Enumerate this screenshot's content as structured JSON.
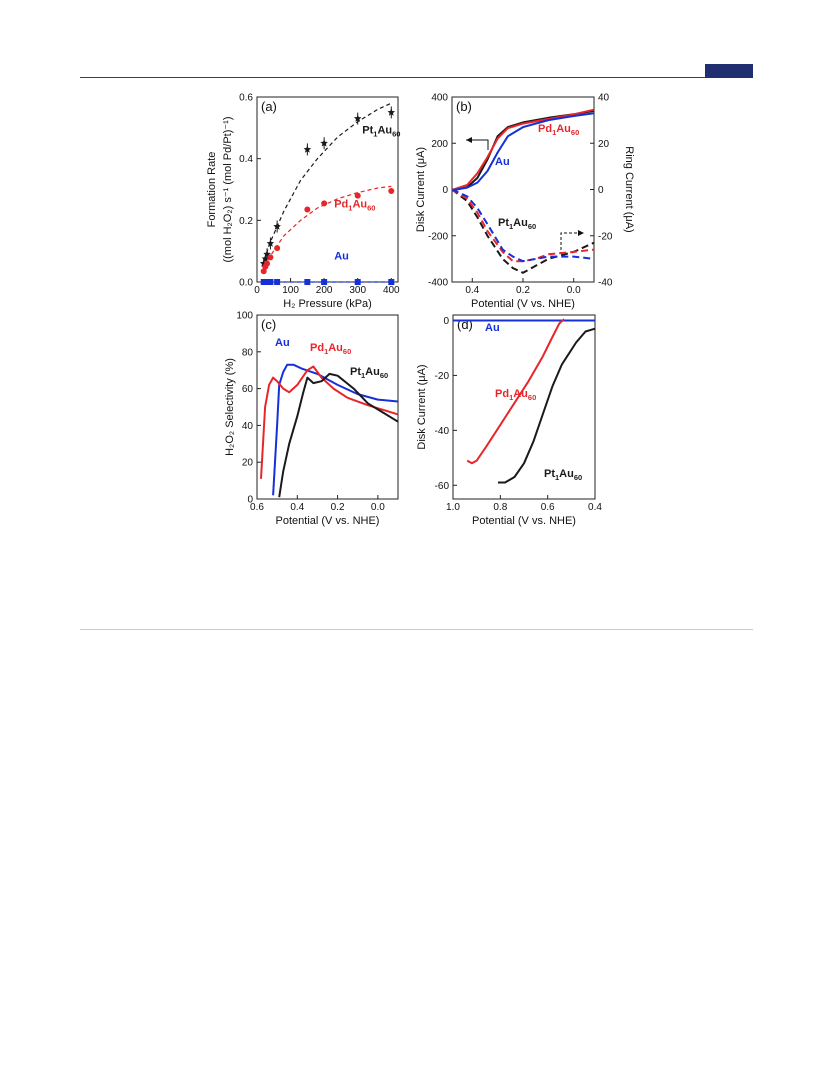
{
  "chart_data": [
    {
      "panel": "(a)",
      "type": "scatter",
      "xlabel": "H2 Pressure (kPa)",
      "ylabel_line1": "Formation Rate",
      "ylabel_line2": "((mol H2O2) s-1 (mol Pd/Pt)-1)",
      "xlim": [
        0,
        420
      ],
      "ylim": [
        0,
        0.6
      ],
      "xticks": [
        0,
        100,
        200,
        300,
        400
      ],
      "yticks": [
        0.0,
        0.2,
        0.4,
        0.6
      ],
      "series": [
        {
          "name": "Pt1Au60",
          "color": "#1a1a1a",
          "marker": "star",
          "x": [
            20,
            25,
            30,
            40,
            60,
            150,
            200,
            300,
            400
          ],
          "y": [
            0.06,
            0.075,
            0.09,
            0.125,
            0.18,
            0.43,
            0.45,
            0.53,
            0.55
          ],
          "fit": [
            [
              15,
              0.05
            ],
            [
              40,
              0.13
            ],
            [
              80,
              0.23
            ],
            [
              130,
              0.33
            ],
            [
              180,
              0.4
            ],
            [
              240,
              0.47
            ],
            [
              300,
              0.52
            ],
            [
              360,
              0.56
            ],
            [
              400,
              0.58
            ]
          ]
        },
        {
          "name": "Pd1Au60",
          "color": "#e8262a",
          "marker": "circle",
          "x": [
            20,
            25,
            30,
            40,
            60,
            150,
            200,
            300,
            400
          ],
          "y": [
            0.035,
            0.05,
            0.06,
            0.08,
            0.11,
            0.235,
            0.255,
            0.28,
            0.295
          ],
          "fit": [
            [
              15,
              0.03
            ],
            [
              40,
              0.085
            ],
            [
              80,
              0.15
            ],
            [
              130,
              0.2
            ],
            [
              180,
              0.24
            ],
            [
              240,
              0.27
            ],
            [
              300,
              0.29
            ],
            [
              360,
              0.305
            ],
            [
              400,
              0.31
            ]
          ]
        },
        {
          "name": "Au",
          "color": "#1530d8",
          "marker": "square",
          "x": [
            20,
            25,
            30,
            40,
            60,
            150,
            200,
            300,
            400
          ],
          "y": [
            0,
            0,
            0,
            0,
            0,
            0,
            0,
            0,
            0
          ],
          "fit": [
            [
              15,
              0
            ],
            [
              400,
              0
            ]
          ]
        }
      ],
      "labels": [
        {
          "text": "Pt",
          "sub": "1",
          "text2": "Au",
          "sub2": "60",
          "series": "Pt1Au60",
          "at_data": [
            260,
            0.45
          ]
        },
        {
          "text": "Pd",
          "sub": "1",
          "text2": "Au",
          "sub2": "60",
          "series": "Pd1Au60",
          "at_data": [
            230,
            0.21
          ]
        },
        {
          "text": "Au",
          "series": "Au",
          "at_data": [
            230,
            0.04
          ]
        }
      ]
    },
    {
      "panel": "(b)",
      "type": "line",
      "xlabel": "Potential (V vs. NHE)",
      "ylabel_left": "Disk Current (μA)",
      "ylabel_right": "Ring Current (μA)",
      "xlim": [
        0.48,
        -0.08
      ],
      "ylim_left": [
        -400,
        400
      ],
      "ylim_right": [
        -40,
        40
      ],
      "xticks": [
        0.4,
        0.2,
        0.0
      ],
      "yticks_left": [
        -400,
        -200,
        0,
        200,
        400
      ],
      "yticks_right": [
        -40,
        -20,
        0,
        20,
        40
      ],
      "disk_series": [
        {
          "name": "Pt1Au60",
          "color": "#1a1a1a",
          "points": [
            [
              0.48,
              -5
            ],
            [
              0.42,
              10
            ],
            [
              0.38,
              50
            ],
            [
              0.34,
              130
            ],
            [
              0.3,
              230
            ],
            [
              0.26,
              270
            ],
            [
              0.2,
              290
            ],
            [
              0.1,
              310
            ],
            [
              0.0,
              325
            ],
            [
              -0.08,
              340
            ]
          ]
        },
        {
          "name": "Pd1Au60",
          "color": "#e8262a",
          "points": [
            [
              0.48,
              -2
            ],
            [
              0.42,
              20
            ],
            [
              0.38,
              70
            ],
            [
              0.34,
              140
            ],
            [
              0.3,
              220
            ],
            [
              0.26,
              265
            ],
            [
              0.2,
              285
            ],
            [
              0.1,
              305
            ],
            [
              0.0,
              325
            ],
            [
              -0.08,
              345
            ]
          ]
        },
        {
          "name": "Au",
          "color": "#1530d8",
          "points": [
            [
              0.48,
              -3
            ],
            [
              0.42,
              8
            ],
            [
              0.38,
              30
            ],
            [
              0.34,
              80
            ],
            [
              0.3,
              160
            ],
            [
              0.26,
              230
            ],
            [
              0.2,
              270
            ],
            [
              0.1,
              300
            ],
            [
              0.0,
              318
            ],
            [
              -0.08,
              330
            ]
          ]
        }
      ],
      "ring_series": [
        {
          "name": "Pt1Au60",
          "color": "#1a1a1a",
          "points": [
            [
              0.48,
              0
            ],
            [
              0.42,
              -5
            ],
            [
              0.38,
              -12
            ],
            [
              0.34,
              -20
            ],
            [
              0.28,
              -30
            ],
            [
              0.24,
              -34
            ],
            [
              0.2,
              -36
            ],
            [
              0.15,
              -33
            ],
            [
              0.1,
              -30
            ],
            [
              0.0,
              -27
            ],
            [
              -0.08,
              -23
            ]
          ]
        },
        {
          "name": "Pd1Au60",
          "color": "#e8262a",
          "points": [
            [
              0.48,
              0
            ],
            [
              0.42,
              -4
            ],
            [
              0.38,
              -10
            ],
            [
              0.34,
              -18
            ],
            [
              0.28,
              -27
            ],
            [
              0.24,
              -31
            ],
            [
              0.2,
              -31
            ],
            [
              0.15,
              -30
            ],
            [
              0.1,
              -28
            ],
            [
              0.0,
              -27
            ],
            [
              -0.08,
              -26
            ]
          ]
        },
        {
          "name": "Au",
          "color": "#1530d8",
          "points": [
            [
              0.48,
              0
            ],
            [
              0.42,
              -3
            ],
            [
              0.38,
              -8
            ],
            [
              0.34,
              -15
            ],
            [
              0.28,
              -26
            ],
            [
              0.24,
              -29
            ],
            [
              0.2,
              -31
            ],
            [
              0.15,
              -30
            ],
            [
              0.1,
              -29
            ],
            [
              0.0,
              -29
            ],
            [
              -0.08,
              -30
            ]
          ]
        }
      ],
      "labels": [
        {
          "text": "Pd",
          "sub": "1",
          "text2": "Au",
          "sub2": "60",
          "series": "Pd1Au60"
        },
        {
          "text": "Au",
          "series": "Au"
        },
        {
          "text": "Pt",
          "sub": "1",
          "text2": "Au",
          "sub2": "60",
          "series": "Pt1Au60"
        }
      ]
    },
    {
      "panel": "(c)",
      "type": "line",
      "xlabel": "Potential (V vs. NHE)",
      "ylabel": "H2O2 Selectivity (%)",
      "xlim": [
        0.6,
        -0.1
      ],
      "ylim": [
        0,
        100
      ],
      "xticks": [
        0.6,
        0.4,
        0.2,
        0.0
      ],
      "yticks": [
        0,
        20,
        40,
        60,
        80,
        100
      ],
      "series": [
        {
          "name": "Au",
          "color": "#1530d8",
          "points": [
            [
              0.52,
              2
            ],
            [
              0.5,
              40
            ],
            [
              0.49,
              62
            ],
            [
              0.47,
              69
            ],
            [
              0.45,
              73
            ],
            [
              0.42,
              73
            ],
            [
              0.38,
              71
            ],
            [
              0.3,
              68
            ],
            [
              0.2,
              62
            ],
            [
              0.1,
              57
            ],
            [
              0.0,
              54
            ],
            [
              -0.1,
              53
            ]
          ]
        },
        {
          "name": "Pd1Au60",
          "color": "#e8262a",
          "points": [
            [
              0.58,
              11
            ],
            [
              0.56,
              50
            ],
            [
              0.54,
              62
            ],
            [
              0.52,
              66
            ],
            [
              0.5,
              64
            ],
            [
              0.47,
              60
            ],
            [
              0.44,
              58
            ],
            [
              0.4,
              62
            ],
            [
              0.35,
              70
            ],
            [
              0.32,
              72
            ],
            [
              0.28,
              66
            ],
            [
              0.22,
              60
            ],
            [
              0.15,
              55
            ],
            [
              0.05,
              51
            ],
            [
              -0.1,
              46
            ]
          ]
        },
        {
          "name": "Pt1Au60",
          "color": "#1a1a1a",
          "points": [
            [
              0.49,
              1
            ],
            [
              0.47,
              15
            ],
            [
              0.44,
              30
            ],
            [
              0.4,
              45
            ],
            [
              0.37,
              58
            ],
            [
              0.35,
              66
            ],
            [
              0.32,
              63
            ],
            [
              0.28,
              64
            ],
            [
              0.24,
              68
            ],
            [
              0.2,
              67
            ],
            [
              0.12,
              60
            ],
            [
              0.05,
              52
            ],
            [
              -0.1,
              42
            ]
          ]
        }
      ],
      "labels": [
        {
          "text": "Au",
          "series": "Au"
        },
        {
          "text": "Pd",
          "sub": "1",
          "text2": "Au",
          "sub2": "60",
          "series": "Pd1Au60"
        },
        {
          "text": "Pt",
          "sub": "1",
          "text2": "Au",
          "sub2": "60",
          "series": "Pt1Au60"
        }
      ]
    },
    {
      "panel": "(d)",
      "type": "line",
      "xlabel": "Potential (V vs. NHE)",
      "ylabel": "Disk Current (μA)",
      "xlim": [
        1.0,
        0.4
      ],
      "ylim": [
        -65,
        2
      ],
      "xticks": [
        1.0,
        0.8,
        0.6,
        0.4
      ],
      "yticks": [
        -60,
        -40,
        -20,
        0
      ],
      "series": [
        {
          "name": "Au",
          "color": "#1530d8",
          "points": [
            [
              1.0,
              0
            ],
            [
              0.9,
              0
            ],
            [
              0.8,
              0
            ],
            [
              0.7,
              0
            ],
            [
              0.6,
              0
            ],
            [
              0.5,
              0
            ],
            [
              0.4,
              0
            ]
          ]
        },
        {
          "name": "Pd1Au60",
          "color": "#e8262a",
          "points": [
            [
              0.94,
              -51
            ],
            [
              0.92,
              -52
            ],
            [
              0.9,
              -51
            ],
            [
              0.86,
              -46
            ],
            [
              0.8,
              -38
            ],
            [
              0.74,
              -30
            ],
            [
              0.68,
              -22
            ],
            [
              0.62,
              -13
            ],
            [
              0.58,
              -6
            ],
            [
              0.55,
              -1
            ],
            [
              0.53,
              0.5
            ]
          ]
        },
        {
          "name": "Pt1Au60",
          "color": "#1a1a1a",
          "points": [
            [
              0.81,
              -59
            ],
            [
              0.78,
              -59
            ],
            [
              0.74,
              -57
            ],
            [
              0.7,
              -52
            ],
            [
              0.66,
              -44
            ],
            [
              0.62,
              -34
            ],
            [
              0.58,
              -24
            ],
            [
              0.54,
              -16
            ],
            [
              0.48,
              -8
            ],
            [
              0.44,
              -4
            ],
            [
              0.4,
              -3
            ]
          ]
        }
      ],
      "labels": [
        {
          "text": "Au",
          "series": "Au"
        },
        {
          "text": "Pd",
          "sub": "1",
          "text2": "Au",
          "sub2": "60",
          "series": "Pd1Au60"
        },
        {
          "text": "Pt",
          "sub": "1",
          "text2": "Au",
          "sub2": "60",
          "series": "Pt1Au60"
        }
      ]
    }
  ]
}
